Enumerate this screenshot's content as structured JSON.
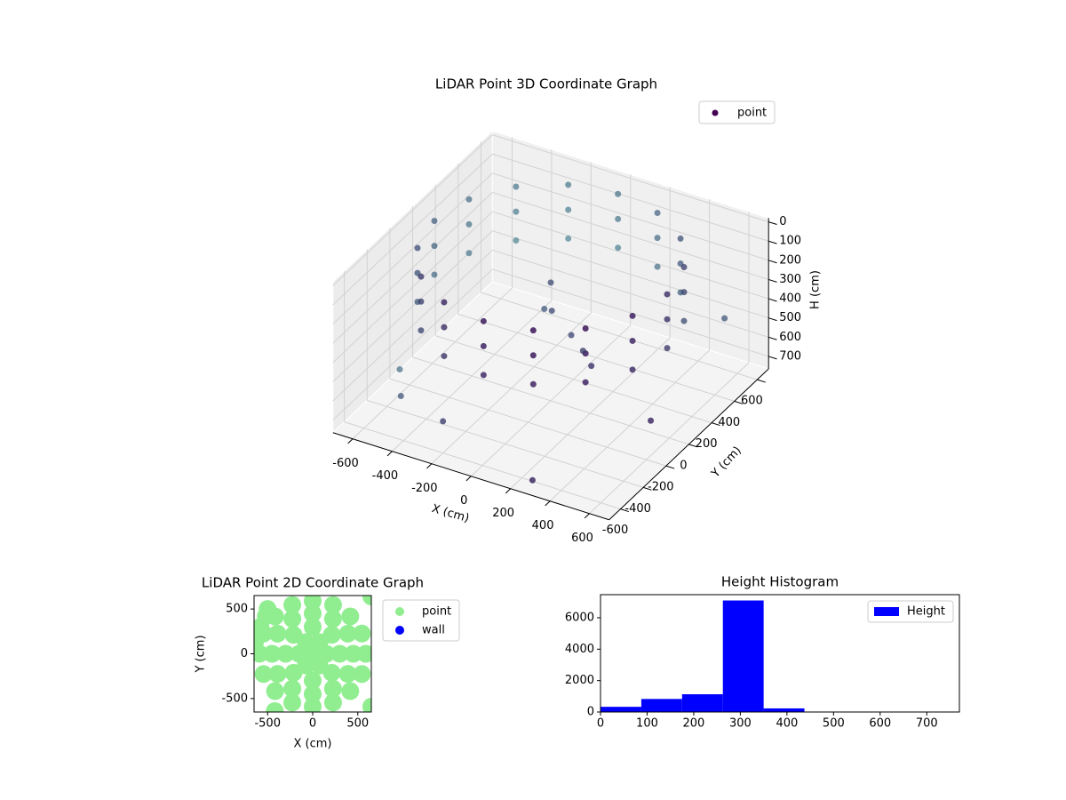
{
  "chart_data": [
    {
      "type": "scatter3d",
      "title": "LiDAR Point 3D Coordinate Graph",
      "xlabel": "X (cm)",
      "ylabel": "Y (cm)",
      "zlabel": "H (cm)",
      "xlim": [
        -700,
        700
      ],
      "ylim": [
        -700,
        700
      ],
      "zlim": [
        -20,
        765
      ],
      "zinverted": true,
      "xticks": [
        -600,
        -400,
        -200,
        0,
        200,
        400,
        600
      ],
      "yticks": [
        -600,
        -400,
        -200,
        0,
        200,
        400,
        600
      ],
      "zticks": [
        0,
        100,
        200,
        300,
        400,
        500,
        600,
        700
      ],
      "grid": true,
      "legend": "upper right",
      "series": [
        {
          "name": "point",
          "color": "#440154",
          "x": [
            590,
            545,
            417,
            226,
            0,
            -226,
            -417,
            -545,
            -590,
            -545,
            -417,
            -226,
            0,
            226,
            417,
            545,
            590,
            545,
            417,
            226,
            0,
            -226,
            -417,
            -545,
            -590,
            -545,
            -417,
            -226,
            0,
            226,
            417,
            545,
            590,
            545,
            417,
            226,
            0,
            -226,
            -417,
            -545,
            -590,
            -545,
            -417,
            -226,
            0,
            226,
            417,
            545,
            0,
            40,
            -50,
            150,
            250,
            350,
            -650,
            -500,
            -200,
            300,
            680,
            650
          ],
          "y": [
            0,
            226,
            417,
            545,
            590,
            545,
            417,
            226,
            0,
            -226,
            -417,
            -545,
            -590,
            -545,
            -417,
            -226,
            0,
            226,
            417,
            545,
            590,
            545,
            417,
            226,
            0,
            -226,
            -417,
            -545,
            -590,
            -545,
            -417,
            -226,
            0,
            226,
            417,
            545,
            590,
            545,
            417,
            226,
            0,
            -226,
            -417,
            -545,
            -590,
            -545,
            -417,
            -226,
            0,
            -60,
            30,
            -80,
            -150,
            -250,
            -200,
            -450,
            -600,
            -680,
            -300,
            400
          ],
          "z": [
            20,
            20,
            20,
            20,
            20,
            20,
            20,
            20,
            20,
            20,
            20,
            20,
            20,
            20,
            20,
            20,
            150,
            150,
            150,
            150,
            150,
            150,
            150,
            150,
            150,
            150,
            150,
            150,
            150,
            150,
            150,
            150,
            300,
            300,
            300,
            300,
            300,
            300,
            300,
            300,
            300,
            300,
            300,
            300,
            300,
            300,
            300,
            300,
            150,
            250,
            320,
            330,
            340,
            330,
            700,
            650,
            600,
            700,
            480,
            350
          ]
        }
      ]
    },
    {
      "type": "scatter",
      "title": "LiDAR Point 2D Coordinate Graph",
      "xlabel": "X (cm)",
      "ylabel": "Y (cm)",
      "xlim": [
        -650,
        650
      ],
      "ylim": [
        -650,
        650
      ],
      "xticks": [
        -500,
        0,
        500
      ],
      "yticks": [
        -500,
        0,
        500
      ],
      "legend": "outside right",
      "series": [
        {
          "name": "point",
          "color": "#90ee90",
          "x": [
            0,
            150,
            75,
            -75,
            -150,
            -75,
            75,
            300,
            212,
            0,
            -212,
            -300,
            -212,
            0,
            212,
            450,
            390,
            225,
            0,
            -225,
            -390,
            -450,
            -390,
            -225,
            0,
            225,
            390,
            590,
            545,
            417,
            226,
            0,
            -226,
            -417,
            -545,
            -590,
            -545,
            -417,
            -226,
            0,
            226,
            417,
            545,
            -500,
            -520,
            -580,
            -640,
            -420,
            650,
            650
          ],
          "y": [
            0,
            0,
            130,
            130,
            0,
            -130,
            -130,
            0,
            212,
            300,
            212,
            0,
            -212,
            -300,
            -212,
            0,
            225,
            390,
            450,
            390,
            225,
            0,
            -225,
            -390,
            -450,
            -390,
            -225,
            0,
            226,
            417,
            545,
            590,
            545,
            417,
            226,
            0,
            -226,
            -417,
            -545,
            -590,
            -545,
            -417,
            -226,
            500,
            420,
            300,
            130,
            -640,
            -590,
            640
          ]
        },
        {
          "name": "wall",
          "color": "#0000ff",
          "x": [],
          "y": []
        }
      ]
    },
    {
      "type": "histogram",
      "title": "Height Histogram",
      "bins": [
        0,
        87.5,
        175,
        262.5,
        350,
        437.5,
        525,
        612.5,
        700
      ],
      "xlim": [
        0,
        770
      ],
      "ylim": [
        0,
        7470
      ],
      "xticks": [
        0,
        100,
        200,
        300,
        400,
        500,
        600,
        700
      ],
      "yticks": [
        0,
        2000,
        4000,
        6000
      ],
      "legend": "upper right",
      "series": [
        {
          "name": "Height",
          "color": "#0000ff",
          "values": [
            330,
            830,
            1130,
            7100,
            230,
            10,
            5,
            5
          ]
        }
      ]
    }
  ]
}
